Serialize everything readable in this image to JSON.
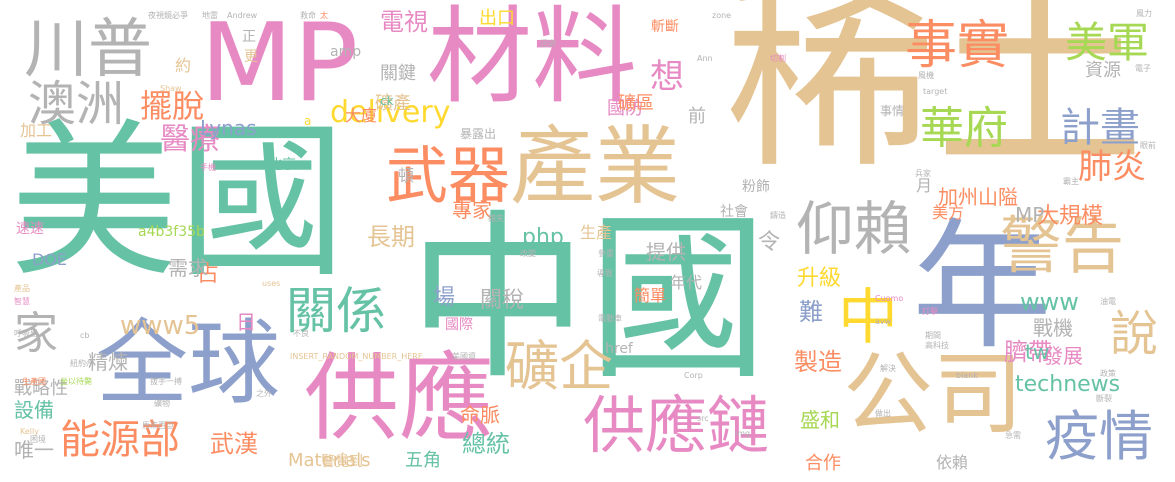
{
  "palette": {
    "teal": "#66c2a5",
    "orange": "#fc8d62",
    "blue": "#8da0cb",
    "pink": "#e78ac3",
    "green": "#a6d854",
    "yellow": "#ffd92f",
    "tan": "#e5c494",
    "gray": "#b3b3b3"
  },
  "words": [
    "稀土",
    "中國",
    "美國",
    "材料",
    "產業",
    "MP",
    "年",
    "全球",
    "供應",
    "公司",
    "供應鏈",
    "川普",
    "澳洲",
    "警告",
    "事實",
    "華府",
    "武器",
    "關係",
    "仰賴",
    "礦企",
    "疫情",
    "美軍",
    "說",
    "能源部",
    "家",
    "中",
    "計畫",
    "肺炎",
    "delivery",
    "擺脫",
    "醫療",
    "www5",
    "technews",
    "想",
    "php",
    "電視",
    "長期",
    "武漢",
    "www",
    "臍帶",
    "總統",
    "製造",
    "升級",
    "大規模",
    "戰機",
    "難",
    "令",
    "占",
    "精煉",
    "設備",
    "唯一",
    "Materials",
    "五角",
    "合作",
    "依賴",
    "命脈",
    "盛和",
    "發展",
    "tw",
    "資源",
    "加州山隘",
    "MP",
    "美方",
    "專家",
    "場",
    "關稅",
    "提供",
    "需求",
    "北京",
    "Lynas",
    "國防",
    "礦區",
    "礦產",
    "大廈",
    "關鍵",
    "出口",
    "前",
    "斬斷",
    "約",
    "正",
    "更",
    "日",
    "月",
    "頓",
    "生產",
    "簡單",
    "國際",
    "年代",
    "戰略性",
    "加工",
    "a4b3f35b",
    "DOE",
    "href",
    "警覺到",
    "速速",
    "暴露出",
    "amp",
    "ck",
    "a",
    "事情",
    "粉飾",
    "社會",
    "美國資",
    "INSERT_RANDOM_NUMBER_HERE",
    "uses",
    "Kelly",
    "Andrew",
    "zone",
    "target",
    "Ann",
    "Corp",
    "blank",
    "Cuomo",
    "avw",
    "img",
    "src",
    "cb",
    "Shaw",
    "必爭",
    "地雷",
    "救命",
    "太",
    "夜視鏡",
    "電子",
    "風機",
    "切割",
    "風力",
    "產品",
    "智慧",
    "手機",
    "油電",
    "呼吸器",
    "紐約州",
    "生產國",
    "坐以待斃",
    "拔手一搏",
    "礦物",
    "困境",
    "馬來西亞",
    "之外",
    "急需",
    "斷裂",
    "眼前",
    "霸主",
    "兵家",
    "高科技",
    "打擊",
    "期間",
    "政策",
    "解決",
    "做出",
    "不良",
    "電動車",
    "導致",
    "參重",
    "改變",
    "錯失",
    "鑄造",
    "迴避"
  ]
}
